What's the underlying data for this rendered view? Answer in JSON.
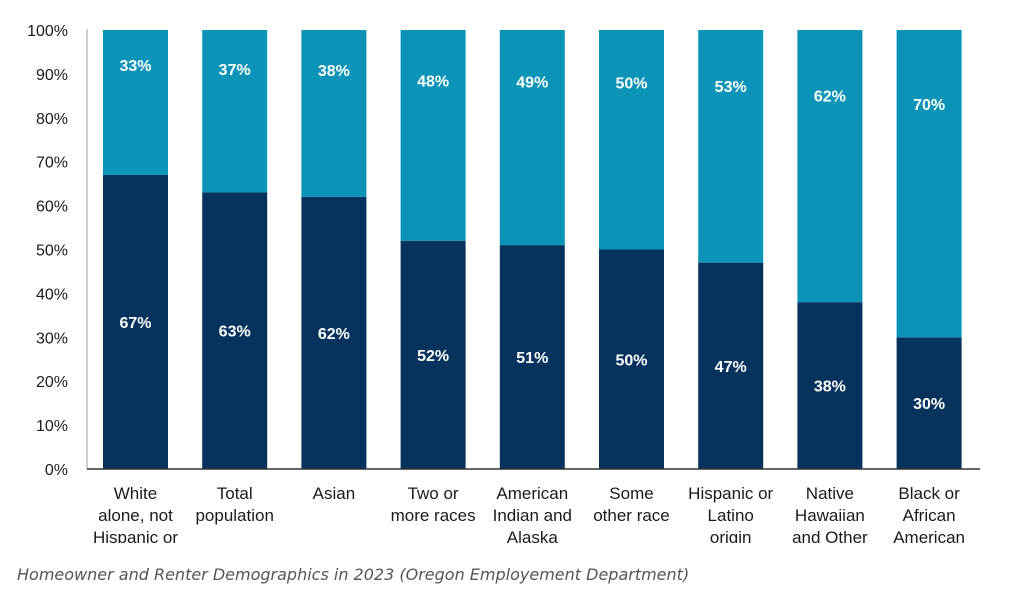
{
  "caption": "Homeowner and Renter Demographics in 2023 (Oregon Employement Department)",
  "chart_data": {
    "type": "bar",
    "stacked": true,
    "percent": true,
    "categories": [
      [
        "White",
        "alone, not",
        "Hispanic or"
      ],
      [
        "Total",
        "population"
      ],
      [
        "Asian"
      ],
      [
        "Two or",
        "more races"
      ],
      [
        "American",
        "Indian and",
        "Alaska"
      ],
      [
        "Some",
        "other race"
      ],
      [
        "Hispanic or",
        "Latino",
        "origin"
      ],
      [
        "Native",
        "Hawaiian",
        "and Other"
      ],
      [
        "Black or",
        "African",
        "American"
      ]
    ],
    "series": [
      {
        "values": [
          67,
          63,
          62,
          52,
          51,
          50,
          47,
          38,
          30
        ],
        "labels": [
          "67%",
          "63%",
          "62%",
          "52%",
          "51%",
          "50%",
          "47%",
          "38%",
          "30%"
        ]
      },
      {
        "values": [
          33,
          37,
          38,
          48,
          49,
          50,
          53,
          62,
          70
        ],
        "labels": [
          "33%",
          "37%",
          "38%",
          "48%",
          "49%",
          "50%",
          "53%",
          "62%",
          "70%"
        ]
      }
    ],
    "ylim": [
      0,
      100
    ],
    "yticks": [
      "0%",
      "10%",
      "20%",
      "30%",
      "40%",
      "50%",
      "60%",
      "70%",
      "80%",
      "90%",
      "100%"
    ],
    "colors": [
      "#06325e",
      "#0c94b8"
    ],
    "grid": false,
    "legend": "none"
  }
}
